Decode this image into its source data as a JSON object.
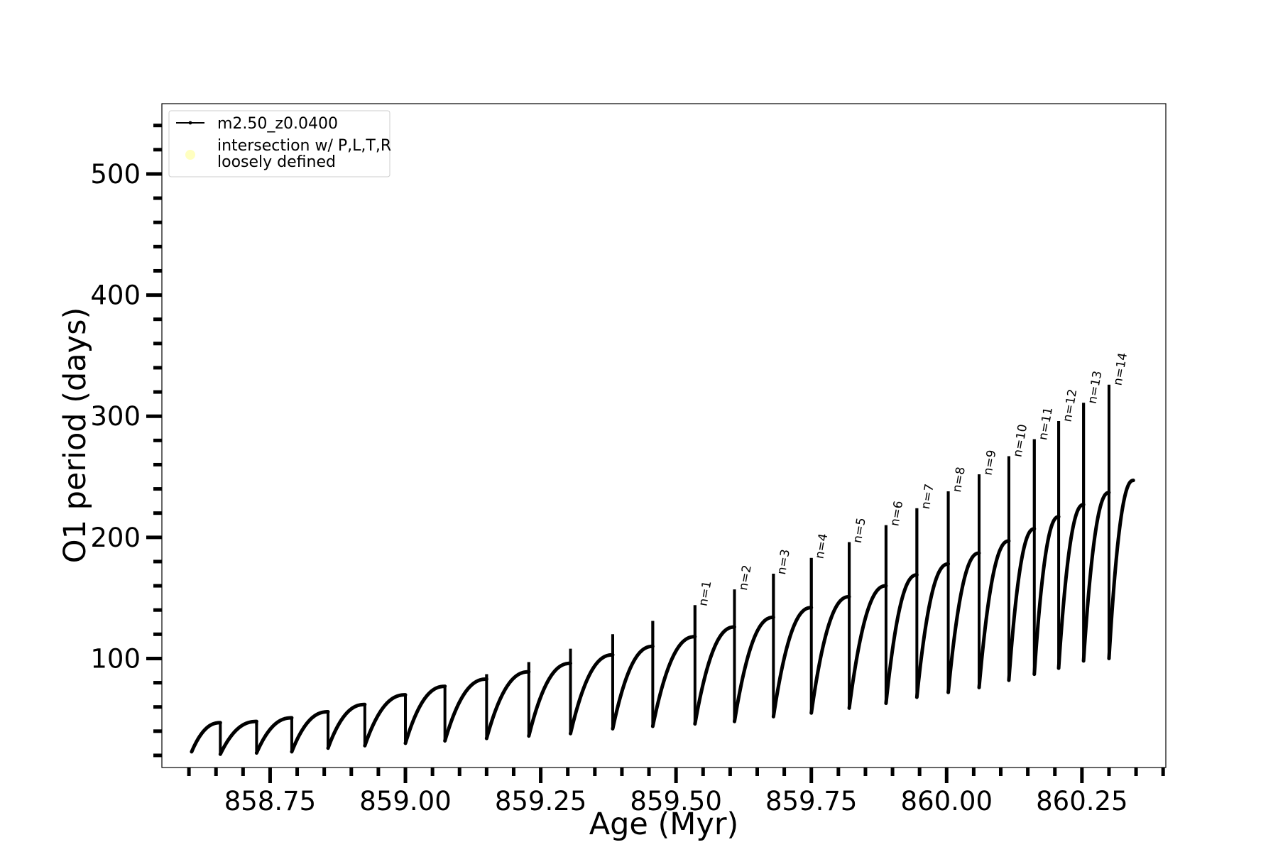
{
  "chart_data": {
    "type": "line",
    "title": "",
    "xlabel": "Age (Myr)",
    "ylabel": "O1 period (days)",
    "xlim": [
      858.55,
      860.405
    ],
    "ylim": [
      10,
      558
    ],
    "x_ticks": [
      858.75,
      859.0,
      859.25,
      859.5,
      859.75,
      860.0,
      860.25
    ],
    "x_tick_labels": [
      "858.75",
      "859.00",
      "859.25",
      "859.50",
      "859.75",
      "860.00",
      "860.25"
    ],
    "y_ticks": [
      100,
      200,
      300,
      400,
      500
    ],
    "y_tick_labels": [
      "100",
      "200",
      "300",
      "400",
      "500"
    ],
    "grid": false,
    "legend_position": "top-left",
    "legend": [
      {
        "label": "m2.50_z0.0400",
        "color": "#000000",
        "marker": "line"
      },
      {
        "label": "intersection w/ P,L,T,R\nloosely defined",
        "color": "#ffffc0",
        "marker": "circle"
      }
    ],
    "series": [
      {
        "name": "m2.50_z0.0400",
        "color": "#000000",
        "cycles": [
          {
            "start": 858.605,
            "end": 858.658,
            "min": 23,
            "max": 47,
            "spike": 46
          },
          {
            "start": 858.658,
            "end": 858.725,
            "min": 21,
            "max": 48,
            "spike": 45
          },
          {
            "start": 858.725,
            "end": 858.79,
            "min": 22,
            "max": 51,
            "spike": 49
          },
          {
            "start": 858.79,
            "end": 858.857,
            "min": 23,
            "max": 56,
            "spike": 56
          },
          {
            "start": 858.857,
            "end": 858.925,
            "min": 26,
            "max": 62,
            "spike": 62
          },
          {
            "start": 858.925,
            "end": 859.0,
            "min": 28,
            "max": 70,
            "spike": 70
          },
          {
            "start": 859.0,
            "end": 859.073,
            "min": 30,
            "max": 77,
            "spike": 78
          },
          {
            "start": 859.073,
            "end": 859.15,
            "min": 32,
            "max": 83,
            "spike": 87
          },
          {
            "start": 859.15,
            "end": 859.228,
            "min": 34,
            "max": 89,
            "spike": 97
          },
          {
            "start": 859.228,
            "end": 859.305,
            "min": 36,
            "max": 96,
            "spike": 108
          },
          {
            "start": 859.305,
            "end": 859.383,
            "min": 38,
            "max": 103,
            "spike": 120
          },
          {
            "start": 859.383,
            "end": 859.457,
            "min": 42,
            "max": 110,
            "spike": 131
          },
          {
            "start": 859.457,
            "end": 859.535,
            "min": 44,
            "max": 118,
            "spike": 144
          },
          {
            "start": 859.535,
            "end": 859.608,
            "min": 46,
            "max": 126,
            "spike": 157
          },
          {
            "start": 859.608,
            "end": 859.68,
            "min": 48,
            "max": 134,
            "spike": 170
          },
          {
            "start": 859.68,
            "end": 859.75,
            "min": 52,
            "max": 142,
            "spike": 183
          },
          {
            "start": 859.75,
            "end": 859.82,
            "min": 55,
            "max": 151,
            "spike": 196
          },
          {
            "start": 859.82,
            "end": 859.888,
            "min": 59,
            "max": 160,
            "spike": 210
          },
          {
            "start": 859.888,
            "end": 859.945,
            "min": 63,
            "max": 169,
            "spike": 224
          },
          {
            "start": 859.945,
            "end": 860.003,
            "min": 68,
            "max": 178,
            "spike": 238
          },
          {
            "start": 860.003,
            "end": 860.06,
            "min": 72,
            "max": 187,
            "spike": 252
          },
          {
            "start": 860.06,
            "end": 860.115,
            "min": 76,
            "max": 197,
            "spike": 267
          },
          {
            "start": 860.115,
            "end": 860.162,
            "min": 82,
            "max": 207,
            "spike": 281
          },
          {
            "start": 860.162,
            "end": 860.207,
            "min": 87,
            "max": 217,
            "spike": 296
          },
          {
            "start": 860.207,
            "end": 860.253,
            "min": 92,
            "max": 227,
            "spike": 311
          },
          {
            "start": 860.253,
            "end": 860.3,
            "min": 98,
            "max": 237,
            "spike": 326
          },
          {
            "start": 860.3,
            "end": 860.345,
            "min": 100,
            "max": 247,
            "spike": null
          }
        ]
      }
    ],
    "annotations": [
      {
        "text": "n=1",
        "x": 859.533,
        "y": 144
      },
      {
        "text": "n=2",
        "x": 859.607,
        "y": 157
      },
      {
        "text": "n=3",
        "x": 859.678,
        "y": 170
      },
      {
        "text": "n=4",
        "x": 859.748,
        "y": 183
      },
      {
        "text": "n=5",
        "x": 859.818,
        "y": 196
      },
      {
        "text": "n=6",
        "x": 859.887,
        "y": 210
      },
      {
        "text": "n=7",
        "x": 859.944,
        "y": 224
      },
      {
        "text": "n=8",
        "x": 860.002,
        "y": 238
      },
      {
        "text": "n=9",
        "x": 860.059,
        "y": 252
      },
      {
        "text": "n=10",
        "x": 860.114,
        "y": 267
      },
      {
        "text": "n=11",
        "x": 860.161,
        "y": 281
      },
      {
        "text": "n=12",
        "x": 860.206,
        "y": 296
      },
      {
        "text": "n=13",
        "x": 860.252,
        "y": 311
      },
      {
        "text": "n=14",
        "x": 860.299,
        "y": 326
      }
    ]
  }
}
